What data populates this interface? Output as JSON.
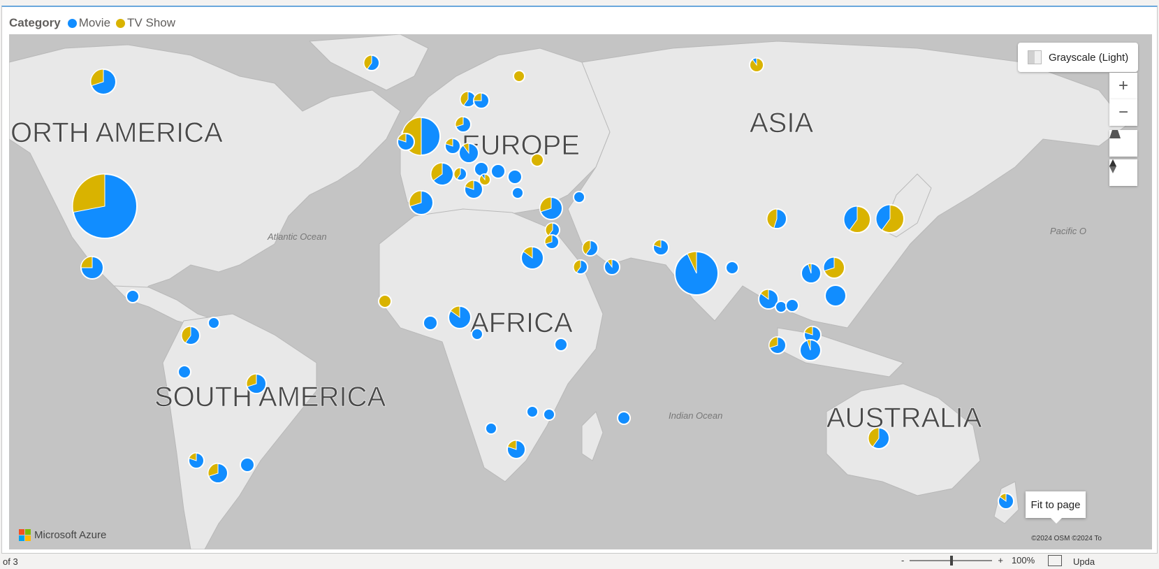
{
  "legend": {
    "title": "Category",
    "items": [
      {
        "label": "Movie",
        "color": "#118dff"
      },
      {
        "label": "TV Show",
        "color": "#d9b300"
      }
    ]
  },
  "map_controls": {
    "style_label": "Grayscale (Light)",
    "zoom_in": "+",
    "zoom_out": "−",
    "pitch_icon": "pitch-icon",
    "compass_icon": "compass-icon"
  },
  "map_labels": {
    "continents": [
      "ORTH AMERICA",
      "EUROPE",
      "ASIA",
      "AFRICA",
      "SOUTH AMERICA",
      "AUSTRALIA"
    ],
    "oceans": [
      "Atlantic Ocean",
      "Indian Ocean",
      "Pacific O"
    ]
  },
  "attribution": {
    "brand": "Microsoft Azure",
    "copyright": "©2024 OSM  ©2024 To"
  },
  "tooltip": "Fit to page",
  "statusbar": {
    "page": "of 3",
    "zoom_minus": "-",
    "zoom_plus": "+",
    "zoom": "100%",
    "update": "Upda"
  }
}
